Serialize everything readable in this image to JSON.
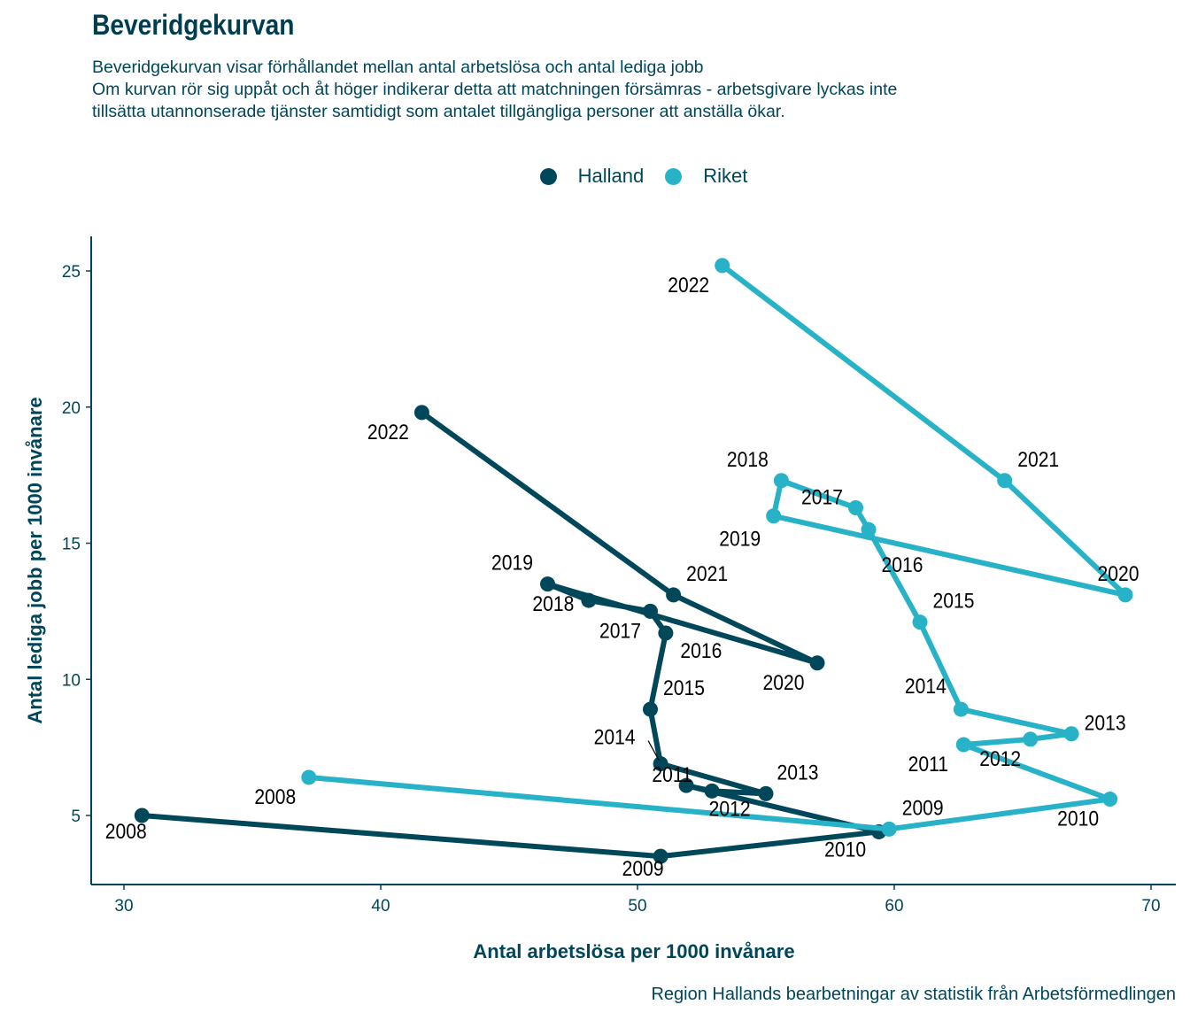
{
  "header": {
    "title": "Beveridgekurvan",
    "subtitle": "Beveridgekurvan visar förhållandet mellan antal arbetslösa och antal lediga jobb\nOm kurvan rör sig uppåt och åt höger indikerar detta att matchningen försämras - arbetsgivare lyckas inte\ntillsätta utannonserade tjänster samtidigt som antalet tillgängliga personer att anställa ökar."
  },
  "caption": "Region Hallands bearbetningar av statistik från Arbetsförmedlingen",
  "colors": {
    "halland": "#00475a",
    "riket": "#28b2c7",
    "axis": "#00465a",
    "label": "#000000"
  },
  "chart_data": {
    "type": "line",
    "title": "Beveridgekurvan",
    "xlabel": "Antal arbetslösa per 1000 invånare",
    "ylabel": "Antal lediga jobb per 1000 invånare",
    "xlim": [
      29,
      71
    ],
    "ylim": [
      2.5,
      26.3
    ],
    "xticks": [
      30,
      40,
      50,
      60,
      70
    ],
    "yticks": [
      5,
      10,
      15,
      20,
      25
    ],
    "grid": false,
    "legend_position": "top",
    "series": [
      {
        "name": "Halland",
        "color": "#00475a",
        "points": [
          {
            "year": "2008",
            "x": 30.7,
            "y": 5.0
          },
          {
            "year": "2009",
            "x": 50.9,
            "y": 3.5
          },
          {
            "year": "2010",
            "x": 59.4,
            "y": 4.4
          },
          {
            "year": "2011",
            "x": 51.9,
            "y": 6.1
          },
          {
            "year": "2012",
            "x": 52.9,
            "y": 5.9
          },
          {
            "year": "2013",
            "x": 55.0,
            "y": 5.8
          },
          {
            "year": "2014",
            "x": 50.9,
            "y": 6.9
          },
          {
            "year": "2015",
            "x": 50.5,
            "y": 8.9
          },
          {
            "year": "2016",
            "x": 51.1,
            "y": 11.7
          },
          {
            "year": "2017",
            "x": 50.5,
            "y": 12.5
          },
          {
            "year": "2018",
            "x": 48.1,
            "y": 12.9
          },
          {
            "year": "2019",
            "x": 46.5,
            "y": 13.5
          },
          {
            "year": "2020",
            "x": 57.0,
            "y": 10.6
          },
          {
            "year": "2021",
            "x": 51.4,
            "y": 13.1
          },
          {
            "year": "2022",
            "x": 41.6,
            "y": 19.8
          }
        ]
      },
      {
        "name": "Riket",
        "color": "#28b2c7",
        "points": [
          {
            "year": "2008",
            "x": 37.2,
            "y": 6.4
          },
          {
            "year": "2009",
            "x": 59.8,
            "y": 4.5
          },
          {
            "year": "2010",
            "x": 68.4,
            "y": 5.6
          },
          {
            "year": "2011",
            "x": 62.7,
            "y": 7.6
          },
          {
            "year": "2012",
            "x": 65.3,
            "y": 7.8
          },
          {
            "year": "2013",
            "x": 66.9,
            "y": 8.0
          },
          {
            "year": "2014",
            "x": 62.6,
            "y": 8.9
          },
          {
            "year": "2015",
            "x": 61.0,
            "y": 12.1
          },
          {
            "year": "2016",
            "x": 59.0,
            "y": 15.5
          },
          {
            "year": "2017",
            "x": 58.5,
            "y": 16.3
          },
          {
            "year": "2018",
            "x": 55.6,
            "y": 17.3
          },
          {
            "year": "2019",
            "x": 55.3,
            "y": 16.0
          },
          {
            "year": "2020",
            "x": 69.0,
            "y": 13.1
          },
          {
            "year": "2021",
            "x": 64.3,
            "y": 17.3
          },
          {
            "year": "2022",
            "x": 53.3,
            "y": 25.2
          }
        ]
      }
    ]
  }
}
